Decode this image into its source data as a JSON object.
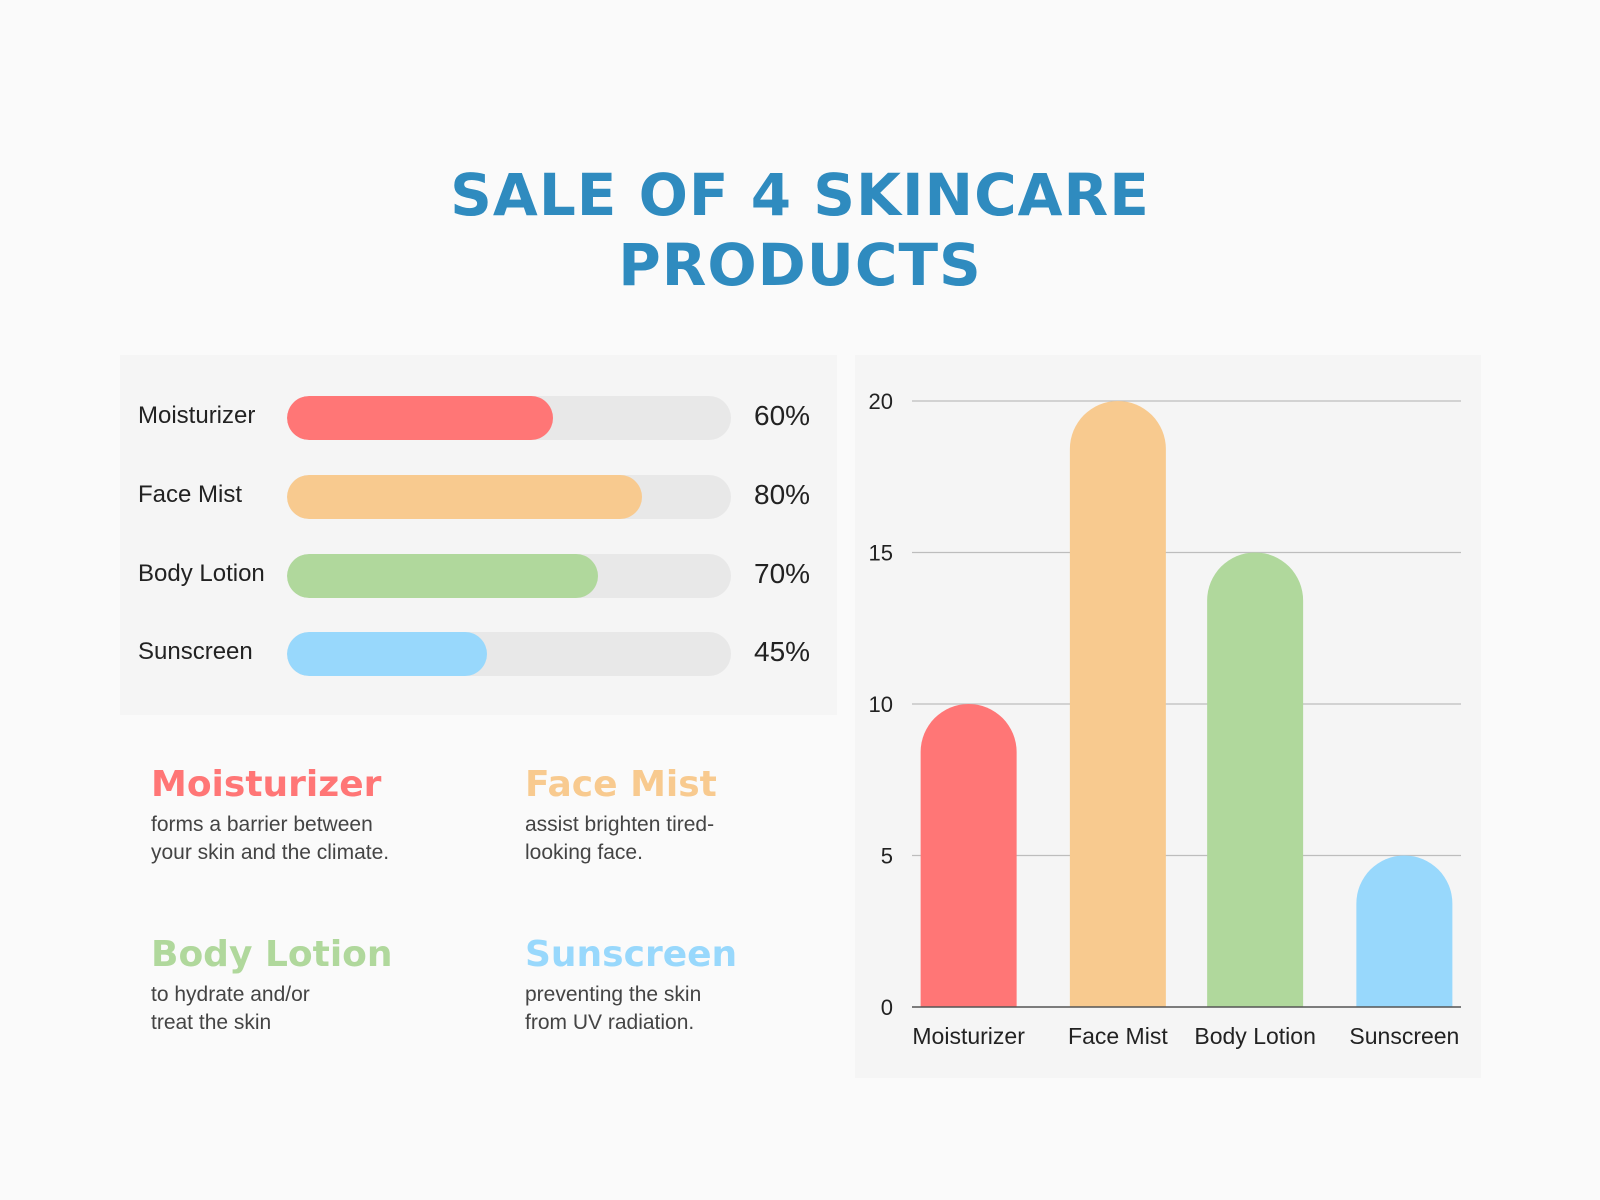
{
  "title": {
    "line1": "SALE OF 4 SKINCARE",
    "line2": "PRODUCTS"
  },
  "colors": {
    "title": "#2f8bbf",
    "moisturizer": "#ff7676",
    "face_mist": "#f8ca8f",
    "body_lotion": "#b0d89c",
    "sunscreen": "#98d8fc",
    "track": "#e8e8e8"
  },
  "progress": [
    {
      "label": "Moisturizer",
      "value_text": "60%",
      "fraction": 0.6,
      "color": "#ff7676"
    },
    {
      "label": "Face Mist",
      "value_text": "80%",
      "fraction": 0.8,
      "color": "#f8ca8f"
    },
    {
      "label": "Body Lotion",
      "value_text": "70%",
      "fraction": 0.7,
      "color": "#b0d89c"
    },
    {
      "label": "Sunscreen",
      "value_text": "45%",
      "fraction": 0.45,
      "color": "#98d8fc"
    }
  ],
  "descriptions": [
    {
      "title": "Moisturizer",
      "line1": "forms a barrier between",
      "line2": "your skin and the climate.",
      "color": "#ff7676"
    },
    {
      "title": "Face Mist",
      "line1": "assist brighten tired-",
      "line2": "looking face.",
      "color": "#f8ca8f"
    },
    {
      "title": "Body Lotion",
      "line1": "to hydrate and/or",
      "line2": "treat the skin",
      "color": "#b0d89c"
    },
    {
      "title": "Sunscreen",
      "line1": "preventing the skin",
      "line2": "from UV radiation.",
      "color": "#98d8fc"
    }
  ],
  "chart_data": {
    "type": "bar",
    "title": "",
    "xlabel": "",
    "ylabel": "",
    "categories": [
      "Moisturizer",
      "Face Mist",
      "Body Lotion",
      "Sunscreen"
    ],
    "values": [
      10,
      20,
      15,
      5
    ],
    "colors": [
      "#ff7676",
      "#f8ca8f",
      "#b0d89c",
      "#98d8fc"
    ],
    "ylim": [
      0,
      20
    ],
    "yticks": [
      0,
      5,
      10,
      15,
      20
    ],
    "grid": true,
    "legend": "none"
  }
}
